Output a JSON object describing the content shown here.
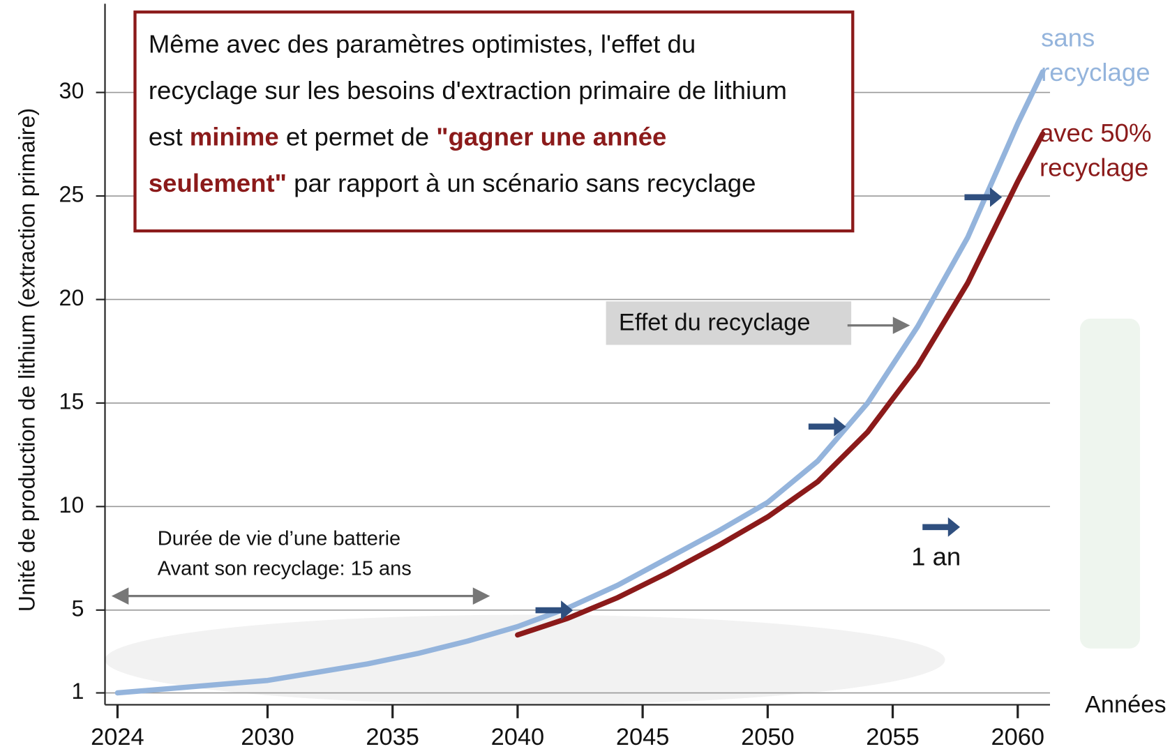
{
  "chart_data": {
    "type": "line",
    "y_axis_label": "Unité de production de lithium (extraction primaire)",
    "x_axis_label": "Années",
    "x": [
      2024,
      2026,
      2028,
      2030,
      2032,
      2034,
      2036,
      2038,
      2040,
      2042,
      2044,
      2046,
      2048,
      2050,
      2052,
      2054,
      2056,
      2058,
      2060,
      2061
    ],
    "series": [
      {
        "name": "sans recyclage",
        "color": "#94b4dc",
        "values": [
          1,
          1.2,
          1.4,
          1.6,
          2.0,
          2.4,
          2.9,
          3.5,
          4.2,
          5.1,
          6.2,
          7.5,
          8.8,
          10.2,
          12.2,
          15.0,
          18.7,
          23.0,
          28.5,
          31
        ]
      },
      {
        "name": "avec 50% recyclage",
        "color": "#8b1a1a",
        "values": [
          null,
          null,
          null,
          null,
          null,
          null,
          null,
          null,
          3.8,
          4.6,
          5.6,
          6.8,
          8.1,
          9.5,
          11.2,
          13.6,
          16.8,
          20.8,
          25.7,
          28
        ]
      }
    ],
    "xlim": [
      2023.5,
      2061.5
    ],
    "xticks": [
      2024,
      2030,
      2035,
      2040,
      2045,
      2050,
      2055,
      2060
    ],
    "ylim": [
      0.5,
      34.5
    ],
    "yticks": [
      1,
      5,
      10,
      15,
      20,
      25,
      30
    ],
    "grid": true,
    "annotation_lines": [
      [
        "Même avec des paramètres optimistes, l'effet du"
      ],
      [
        "recyclage sur les besoins d'extraction primaire de lithium"
      ],
      [
        "est ",
        "minime",
        " et permet de ",
        "\"gagner une année"
      ],
      [
        "seulement\"",
        " par rapport à un scénario sans recyclage"
      ]
    ],
    "effect_label": "Effet du recyclage",
    "battery_note": [
      "Durée de vie d’une batterie",
      "Avant son recyclage: 15 ans"
    ],
    "shift_label": "1 an"
  }
}
